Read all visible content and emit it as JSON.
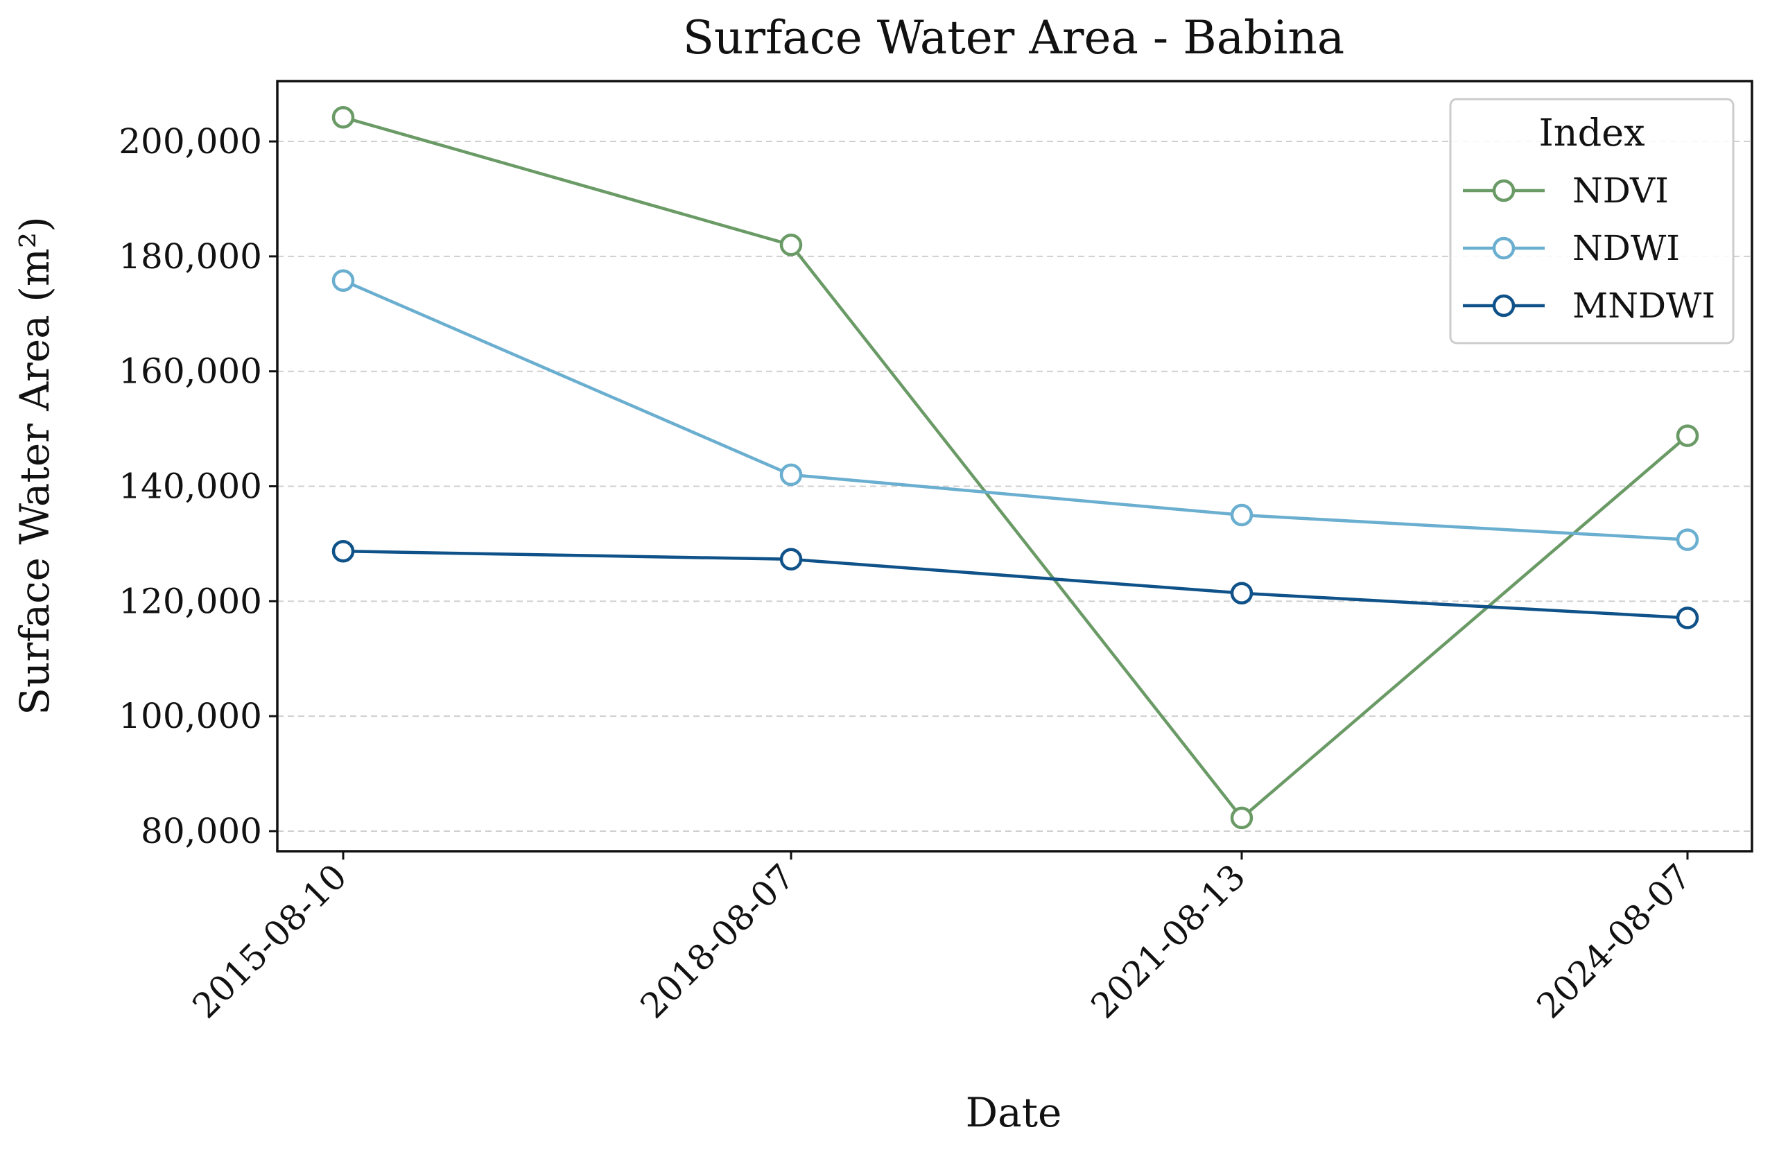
{
  "chart_data": {
    "type": "line",
    "title": "Surface Water Area - Babina",
    "xlabel": "Date",
    "ylabel": "Surface Water Area (m²)",
    "categories": [
      "2015-08-10",
      "2018-08-07",
      "2021-08-13",
      "2024-08-07"
    ],
    "ylim": [
      76500,
      210500
    ],
    "yticks": [
      80000,
      100000,
      120000,
      140000,
      160000,
      180000,
      200000
    ],
    "ytick_labels": [
      "80,000",
      "100,000",
      "120,000",
      "140,000",
      "160,000",
      "180,000",
      "200,000"
    ],
    "grid": "horizontal dashed",
    "legend": {
      "title": "Index",
      "placement": "top-right"
    },
    "series": [
      {
        "name": "NDVI",
        "color": "#6a9a65",
        "values": [
          204200,
          182000,
          82300,
          148800
        ]
      },
      {
        "name": "NDWI",
        "color": "#6aaed0",
        "values": [
          175800,
          142000,
          135000,
          130700
        ]
      },
      {
        "name": "MNDWI",
        "color": "#0f5289",
        "values": [
          128700,
          127300,
          121400,
          117100
        ]
      }
    ]
  }
}
